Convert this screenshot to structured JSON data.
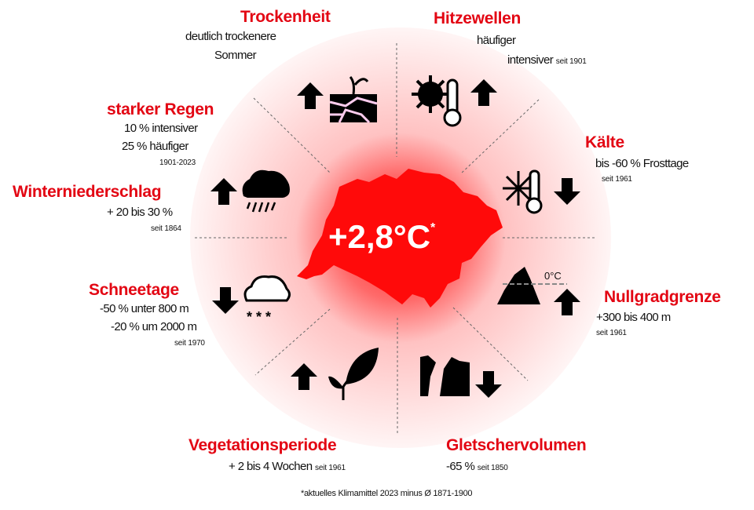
{
  "center": {
    "value": "+2,8°C",
    "footnote_mark": "*"
  },
  "footnote": "*aktuelles Klimamittel 2023 minus Ø 1871-1900",
  "colors": {
    "accent": "#e30613",
    "text": "#111111",
    "icons": "#000000"
  },
  "items": [
    {
      "title": "Trockenheit",
      "lines": [
        "deutlich trockenere",
        "Sommer"
      ],
      "icon": "dry-soil-sprout-icon",
      "trend": "up"
    },
    {
      "title": "Hitzewellen",
      "lines": [
        "häufiger",
        "intensiver"
      ],
      "since": "seit 1901",
      "icon": "sun-thermometer-icon",
      "trend": "up"
    },
    {
      "title": "Kälte",
      "lines": [
        "bis -60 % Frosttage"
      ],
      "since": "seit 1961",
      "icon": "snowflake-thermometer-icon",
      "trend": "down"
    },
    {
      "title": "Nullgradgrenze",
      "lines": [
        "+300 bis 400 m"
      ],
      "since": "seit 1961",
      "icon": "mountain-zero-line-icon",
      "icon_label": "0°C",
      "trend": "up"
    },
    {
      "title": "Gletschervolumen",
      "lines": [
        "-65 %"
      ],
      "since": "seit 1850",
      "icon": "glacier-icon",
      "trend": "down"
    },
    {
      "title": "Vegetationsperiode",
      "lines": [
        "+ 2 bis 4 Wochen"
      ],
      "since": "seit 1961",
      "icon": "leaf-icon",
      "trend": "up"
    },
    {
      "title": "Schneetage",
      "lines": [
        "-50 % unter 800 m",
        "-20 % um 2000 m"
      ],
      "since": "seit 1970",
      "icon": "snow-cloud-icon",
      "trend": "down"
    },
    {
      "title": "Winterniederschlag",
      "lines": [
        "+ 20 bis 30 %"
      ],
      "since": "seit 1864",
      "icon": "rain-cloud-icon",
      "trend": "up"
    },
    {
      "title": "starker Regen",
      "lines": [
        "10 % intensiver",
        "25 % häufiger"
      ],
      "since": "1901-2023",
      "icon": "heavy-rain-icon",
      "trend": "up"
    }
  ]
}
